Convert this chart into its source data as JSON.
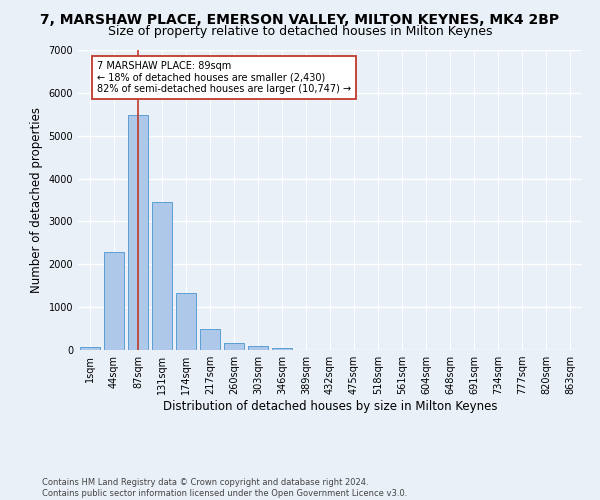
{
  "title": "7, MARSHAW PLACE, EMERSON VALLEY, MILTON KEYNES, MK4 2BP",
  "subtitle": "Size of property relative to detached houses in Milton Keynes",
  "xlabel": "Distribution of detached houses by size in Milton Keynes",
  "ylabel": "Number of detached properties",
  "footnote1": "Contains HM Land Registry data © Crown copyright and database right 2024.",
  "footnote2": "Contains public sector information licensed under the Open Government Licence v3.0.",
  "bar_labels": [
    "1sqm",
    "44sqm",
    "87sqm",
    "131sqm",
    "174sqm",
    "217sqm",
    "260sqm",
    "303sqm",
    "346sqm",
    "389sqm",
    "432sqm",
    "475sqm",
    "518sqm",
    "561sqm",
    "604sqm",
    "648sqm",
    "691sqm",
    "734sqm",
    "777sqm",
    "820sqm",
    "863sqm"
  ],
  "bar_values": [
    80,
    2280,
    5480,
    3450,
    1320,
    480,
    160,
    90,
    55,
    0,
    0,
    0,
    0,
    0,
    0,
    0,
    0,
    0,
    0,
    0,
    0
  ],
  "bar_color": "#adc8e8",
  "bar_edge_color": "#5a9fd4",
  "vline_x": 2.0,
  "vline_color": "#c0392b",
  "annotation_text": "7 MARSHAW PLACE: 89sqm\n← 18% of detached houses are smaller (2,430)\n82% of semi-detached houses are larger (10,747) →",
  "annotation_box_color": "#ffffff",
  "annotation_box_edge": "#c0392b",
  "ylim": [
    0,
    7000
  ],
  "yticks": [
    0,
    1000,
    2000,
    3000,
    4000,
    5000,
    6000,
    7000
  ],
  "bg_color": "#eaf0f8",
  "grid_color": "#ffffff",
  "title_fontsize": 10,
  "subtitle_fontsize": 9,
  "axis_label_fontsize": 8.5,
  "tick_fontsize": 7,
  "footnote_fontsize": 6
}
